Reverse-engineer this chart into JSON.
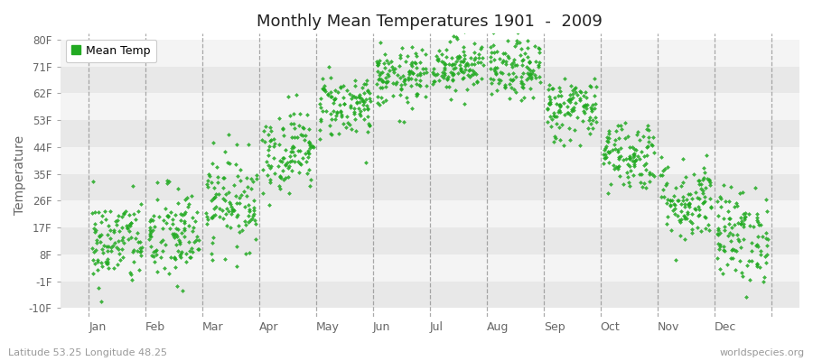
{
  "title": "Monthly Mean Temperatures 1901  -  2009",
  "ylabel": "Temperature",
  "yticks": [
    -10,
    -1,
    8,
    17,
    26,
    35,
    44,
    53,
    62,
    71,
    80
  ],
  "ytick_labels": [
    "-10F",
    "-1F",
    "8F",
    "17F",
    "26F",
    "35F",
    "44F",
    "53F",
    "62F",
    "71F",
    "80F"
  ],
  "ylim": [
    -13,
    82
  ],
  "months": [
    "Jan",
    "Feb",
    "Mar",
    "Apr",
    "May",
    "Jun",
    "Jul",
    "Aug",
    "Sep",
    "Oct",
    "Nov",
    "Dec"
  ],
  "month_means_f": [
    12.0,
    14.0,
    26.0,
    43.0,
    58.0,
    67.0,
    71.5,
    69.5,
    57.0,
    41.5,
    26.0,
    14.5
  ],
  "month_stds_f": [
    7.5,
    8.5,
    8.0,
    7.0,
    5.5,
    5.0,
    4.5,
    5.0,
    5.5,
    6.0,
    7.0,
    8.0
  ],
  "n_years": 109,
  "dot_color": "#22aa22",
  "dot_size": 6,
  "background_color": "#ffffff",
  "band_colors": [
    "#e8e8e8",
    "#f4f4f4"
  ],
  "title_fontsize": 13,
  "axis_label_color": "#666666",
  "tick_label_color": "#666666",
  "legend_text": "Mean Temp",
  "footer_left": "Latitude 53.25 Longitude 48.25",
  "footer_right": "worldspecies.org",
  "dashed_line_color": "#888888",
  "seed": 42
}
